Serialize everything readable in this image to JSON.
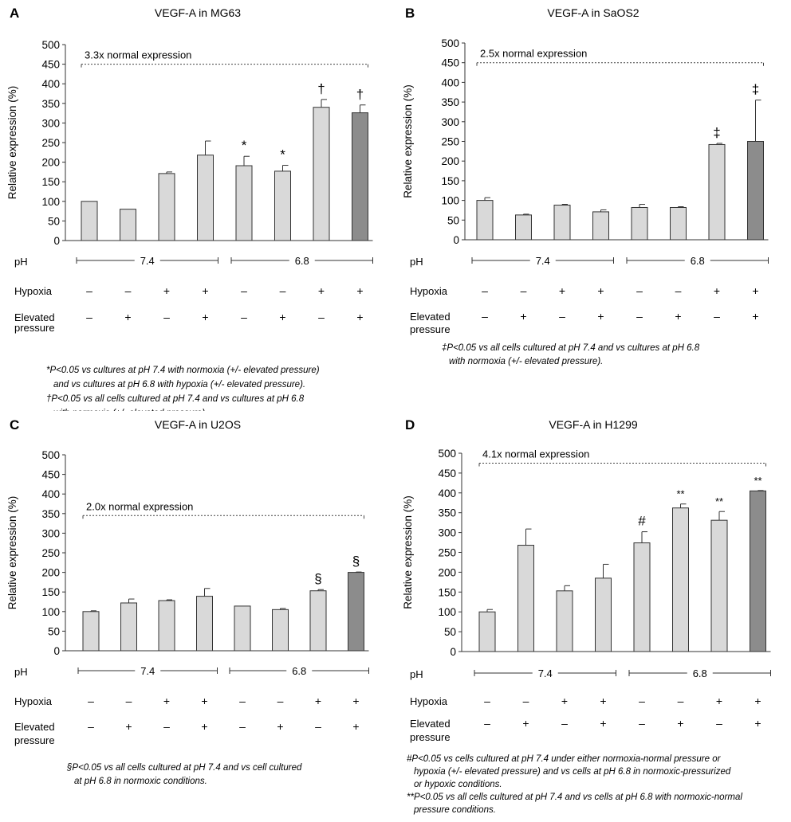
{
  "chart_data": [
    {
      "panel": "A",
      "type": "bar",
      "title": "VEGF-A in MG63",
      "ylabel": "Relative expression (%)",
      "ylim": [
        0,
        500
      ],
      "yticks": [
        0,
        50,
        100,
        150,
        200,
        250,
        300,
        350,
        400,
        450,
        500
      ],
      "values": [
        100,
        80,
        171,
        218,
        191,
        177,
        340,
        326
      ],
      "errors": [
        0,
        0,
        4,
        36,
        24,
        15,
        20,
        20
      ],
      "bar_colors": [
        "#d9d9d9",
        "#d9d9d9",
        "#d9d9d9",
        "#d9d9d9",
        "#d9d9d9",
        "#d9d9d9",
        "#d9d9d9",
        "#8c8c8c"
      ],
      "markers": [
        "",
        "",
        "",
        "",
        "*",
        "*",
        "†",
        "†"
      ],
      "bracket": {
        "text": "3.3x normal expression",
        "value": 450
      },
      "ph_label": "pH",
      "ph_groups": [
        "7.4",
        "6.8"
      ],
      "hypoxia_label": "Hypoxia",
      "hypoxia": [
        "–",
        "–",
        "+",
        "+",
        "–",
        "–",
        "+",
        "+"
      ],
      "pressure_label": [
        "Elevated",
        "pressure"
      ],
      "pressure": [
        "–",
        "+",
        "–",
        "+",
        "–",
        "+",
        "–",
        "+"
      ],
      "notes": [
        "*P<0.05 vs cultures at pH 7.4 with normoxia (+/- elevated pressure)",
        "and vs cultures at pH 6.8 with hypoxia (+/- elevated pressure).",
        "†P<0.05 vs all cells cultured at pH 7.4 and vs cultures at pH 6.8",
        "with normoxia (+/- elevated pressure)."
      ]
    },
    {
      "panel": "B",
      "type": "bar",
      "title": "VEGF-A in SaOS2",
      "ylabel": "Relative expression (%)",
      "ylim": [
        0,
        500
      ],
      "yticks": [
        0,
        50,
        100,
        150,
        200,
        250,
        300,
        350,
        400,
        450,
        500
      ],
      "values": [
        100,
        63,
        88,
        71,
        82,
        82,
        242,
        250
      ],
      "errors": [
        7,
        2,
        2,
        5,
        8,
        2,
        3,
        105
      ],
      "bar_colors": [
        "#d9d9d9",
        "#d9d9d9",
        "#d9d9d9",
        "#d9d9d9",
        "#d9d9d9",
        "#d9d9d9",
        "#d9d9d9",
        "#8c8c8c"
      ],
      "markers": [
        "",
        "",
        "",
        "",
        "",
        "",
        "‡",
        "‡"
      ],
      "bracket": {
        "text": "2.5x normal expression",
        "value": 450
      },
      "ph_label": "pH",
      "ph_groups": [
        "7.4",
        "6.8"
      ],
      "hypoxia_label": "Hypoxia",
      "hypoxia": [
        "–",
        "–",
        "+",
        "+",
        "–",
        "–",
        "+",
        "+"
      ],
      "pressure_label": [
        "Elevated",
        "pressure"
      ],
      "pressure": [
        "–",
        "+",
        "–",
        "+",
        "–",
        "+",
        "–",
        "+"
      ],
      "notes": [
        "‡P<0.05 vs all cells cultured at pH 7.4 and vs cultures at pH 6.8",
        "with normoxia (+/- elevated pressure)."
      ]
    },
    {
      "panel": "C",
      "type": "bar",
      "title": "VEGF-A in U2OS",
      "ylabel": "Relative expression (%)",
      "ylim": [
        0,
        500
      ],
      "yticks": [
        0,
        50,
        100,
        150,
        200,
        250,
        300,
        350,
        400,
        450,
        500
      ],
      "values": [
        100,
        122,
        128,
        139,
        114,
        105,
        153,
        200
      ],
      "errors": [
        2,
        10,
        2,
        20,
        0,
        3,
        3,
        1
      ],
      "bar_colors": [
        "#d9d9d9",
        "#d9d9d9",
        "#d9d9d9",
        "#d9d9d9",
        "#d9d9d9",
        "#d9d9d9",
        "#d9d9d9",
        "#8c8c8c"
      ],
      "markers": [
        "",
        "",
        "",
        "",
        "",
        "",
        "§",
        "§"
      ],
      "bracket": {
        "text": "2.0x normal expression",
        "value": 345
      },
      "ph_label": "pH",
      "ph_groups": [
        "7.4",
        "6.8"
      ],
      "hypoxia_label": "Hypoxia",
      "hypoxia": [
        "–",
        "–",
        "+",
        "+",
        "–",
        "–",
        "+",
        "+"
      ],
      "pressure_label": [
        "Elevated",
        "pressure"
      ],
      "pressure": [
        "–",
        "+",
        "–",
        "+",
        "–",
        "+",
        "–",
        "+"
      ],
      "notes": [
        "§P<0.05 vs all cells cultured at pH 7.4 and vs cell cultured",
        "at pH 6.8 in normoxic conditions."
      ]
    },
    {
      "panel": "D",
      "type": "bar",
      "title": "VEGF-A in H1299",
      "ylabel": "Relative expression (%)",
      "ylim": [
        0,
        500
      ],
      "yticks": [
        0,
        50,
        100,
        150,
        200,
        250,
        300,
        350,
        400,
        450,
        500
      ],
      "values": [
        100,
        268,
        153,
        185,
        274,
        362,
        331,
        405
      ],
      "errors": [
        6,
        41,
        13,
        35,
        28,
        10,
        22,
        1
      ],
      "bar_colors": [
        "#d9d9d9",
        "#d9d9d9",
        "#d9d9d9",
        "#d9d9d9",
        "#d9d9d9",
        "#d9d9d9",
        "#d9d9d9",
        "#8c8c8c"
      ],
      "markers": [
        "",
        "",
        "",
        "",
        "#",
        "**",
        "**",
        "**"
      ],
      "bracket": {
        "text": "4.1x normal expression",
        "value": 475
      },
      "ph_label": "pH",
      "ph_groups": [
        "7.4",
        "6.8"
      ],
      "hypoxia_label": "Hypoxia",
      "hypoxia": [
        "–",
        "–",
        "+",
        "+",
        "–",
        "–",
        "+",
        "+"
      ],
      "pressure_label": [
        "Elevated",
        "pressure"
      ],
      "pressure": [
        "–",
        "+",
        "–",
        "+",
        "–",
        "+",
        "–",
        "+"
      ],
      "notes": [
        "#P<0.05 vs cells cultured at pH 7.4 under either normoxia-normal pressure or",
        "hypoxia (+/- elevated pressure) and vs cells at pH 6.8 in normoxic-pressurized",
        "or hypoxic conditions.",
        "**P<0.05 vs all cells cultured at pH 7.4 and vs cells at pH 6.8 with normoxic-normal",
        "pressure conditions."
      ]
    }
  ]
}
